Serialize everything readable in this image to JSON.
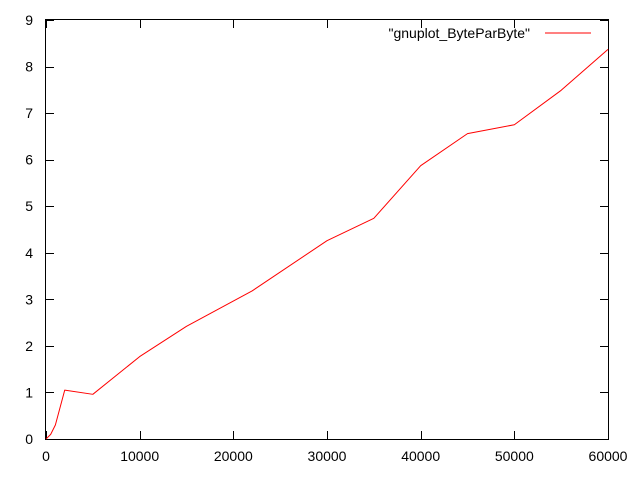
{
  "chart_data": {
    "type": "line",
    "title": "",
    "xlabel": "",
    "ylabel": "",
    "xlim": [
      0,
      60000
    ],
    "ylim": [
      0,
      9
    ],
    "x_ticks": [
      0,
      10000,
      20000,
      30000,
      40000,
      50000,
      60000
    ],
    "y_ticks": [
      0,
      1,
      2,
      3,
      4,
      5,
      6,
      7,
      8,
      9
    ],
    "x_tick_labels": [
      "0",
      "10000",
      "20000",
      "30000",
      "40000",
      "50000",
      "60000"
    ],
    "y_tick_labels": [
      "0",
      "1",
      "2",
      "3",
      "4",
      "5",
      "6",
      "7",
      "8",
      "9"
    ],
    "grid": false,
    "legend_position": "top-right",
    "series": [
      {
        "name": "\"gnuplot_ByteParByte\"",
        "color": "#ff0000",
        "x": [
          0,
          500,
          1000,
          2000,
          5000,
          10000,
          15000,
          22000,
          30000,
          35000,
          40000,
          45000,
          50000,
          55000,
          60000
        ],
        "y": [
          0,
          0.1,
          0.3,
          1.05,
          0.96,
          1.77,
          2.42,
          3.18,
          4.26,
          4.74,
          5.87,
          6.56,
          6.75,
          7.49,
          8.37
        ]
      }
    ]
  }
}
